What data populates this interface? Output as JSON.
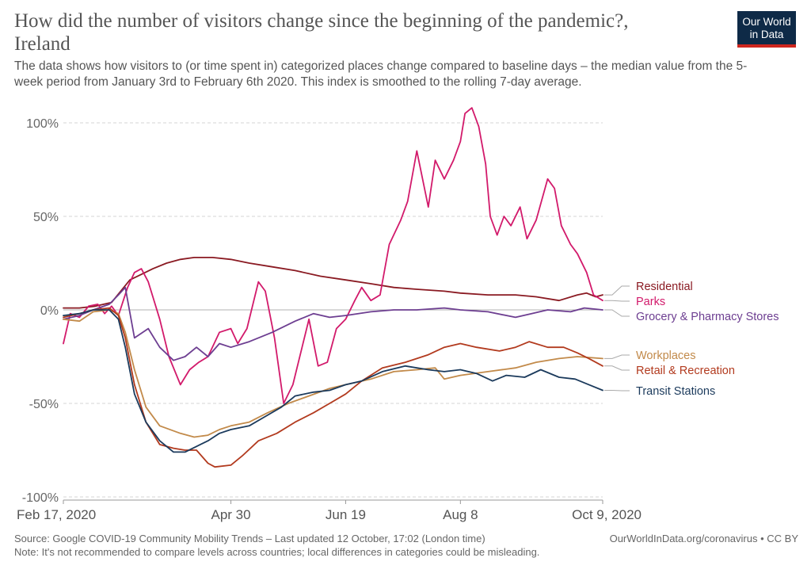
{
  "header": {
    "title": "How did the number of visitors change since the beginning of the pandemic?, Ireland",
    "subtitle": "The data shows how visitors to (or time spent in) categorized places change compared to baseline days – the median value from the 5-week period from January 3rd to February 6th 2020. This index is smoothed to the rolling 7-day average."
  },
  "logo": {
    "line1": "Our World",
    "line2": "in Data",
    "bg_color": "#0e2a47",
    "accent_color": "#ce261e"
  },
  "footer": {
    "source": "Source: Google COVID-19 Community Mobility Trends – Last updated 12 October, 17:02 (London time)",
    "url": "OurWorldInData.org/coronavirus • CC BY",
    "note": "Note: It's not recommended to compare levels across countries; local differences in categories could be misleading."
  },
  "chart_data": {
    "type": "line",
    "title": "How did the number of visitors change since the beginning of the pandemic?, Ireland",
    "x_range": [
      "2020-02-17",
      "2020-10-09"
    ],
    "x_ticks": [
      {
        "date": "2020-02-17",
        "label": "Feb 17, 2020"
      },
      {
        "date": "2020-04-30",
        "label": "Apr 30"
      },
      {
        "date": "2020-06-19",
        "label": "Jun 19"
      },
      {
        "date": "2020-08-08",
        "label": "Aug 8"
      },
      {
        "date": "2020-10-09",
        "label": "Oct 9, 2020"
      }
    ],
    "ylim": [
      -100,
      100
    ],
    "y_ticks": [
      {
        "value": -100,
        "label": "-100%"
      },
      {
        "value": -50,
        "label": "-50%"
      },
      {
        "value": 0,
        "label": "0%"
      },
      {
        "value": 50,
        "label": "50%"
      },
      {
        "value": 100,
        "label": "100%"
      }
    ],
    "grid": true,
    "legend_placement": "right (labels at line ends)",
    "series": [
      {
        "name": "Residential",
        "color": "#8a1a22",
        "points": [
          [
            "2020-02-17",
            1
          ],
          [
            "2020-02-24",
            1
          ],
          [
            "2020-03-02",
            2
          ],
          [
            "2020-03-09",
            4
          ],
          [
            "2020-03-13",
            10
          ],
          [
            "2020-03-17",
            16
          ],
          [
            "2020-03-22",
            19
          ],
          [
            "2020-03-27",
            22
          ],
          [
            "2020-04-02",
            25
          ],
          [
            "2020-04-08",
            27
          ],
          [
            "2020-04-14",
            28
          ],
          [
            "2020-04-22",
            28
          ],
          [
            "2020-04-30",
            27
          ],
          [
            "2020-05-08",
            25
          ],
          [
            "2020-05-18",
            23
          ],
          [
            "2020-05-28",
            21
          ],
          [
            "2020-06-08",
            18
          ],
          [
            "2020-06-19",
            16
          ],
          [
            "2020-06-30",
            14
          ],
          [
            "2020-07-10",
            12
          ],
          [
            "2020-07-20",
            11
          ],
          [
            "2020-08-01",
            10
          ],
          [
            "2020-08-08",
            9
          ],
          [
            "2020-08-20",
            8
          ],
          [
            "2020-09-01",
            8
          ],
          [
            "2020-09-10",
            7
          ],
          [
            "2020-09-20",
            5
          ],
          [
            "2020-09-28",
            8
          ],
          [
            "2020-10-02",
            9
          ],
          [
            "2020-10-06",
            7
          ],
          [
            "2020-10-09",
            8
          ]
        ]
      },
      {
        "name": "Parks",
        "color": "#d21a6b",
        "points": [
          [
            "2020-02-17",
            -18
          ],
          [
            "2020-02-20",
            -2
          ],
          [
            "2020-02-24",
            -4
          ],
          [
            "2020-02-28",
            2
          ],
          [
            "2020-03-03",
            3
          ],
          [
            "2020-03-06",
            -2
          ],
          [
            "2020-03-09",
            2
          ],
          [
            "2020-03-12",
            -3
          ],
          [
            "2020-03-16",
            12
          ],
          [
            "2020-03-19",
            20
          ],
          [
            "2020-03-22",
            22
          ],
          [
            "2020-03-25",
            15
          ],
          [
            "2020-03-30",
            -5
          ],
          [
            "2020-04-03",
            -25
          ],
          [
            "2020-04-08",
            -40
          ],
          [
            "2020-04-12",
            -32
          ],
          [
            "2020-04-16",
            -28
          ],
          [
            "2020-04-20",
            -25
          ],
          [
            "2020-04-25",
            -12
          ],
          [
            "2020-04-30",
            -10
          ],
          [
            "2020-05-03",
            -18
          ],
          [
            "2020-05-07",
            -10
          ],
          [
            "2020-05-12",
            15
          ],
          [
            "2020-05-15",
            10
          ],
          [
            "2020-05-19",
            -15
          ],
          [
            "2020-05-23",
            -50
          ],
          [
            "2020-05-27",
            -40
          ],
          [
            "2020-05-31",
            -20
          ],
          [
            "2020-06-03",
            -5
          ],
          [
            "2020-06-07",
            -30
          ],
          [
            "2020-06-11",
            -28
          ],
          [
            "2020-06-15",
            -10
          ],
          [
            "2020-06-19",
            -5
          ],
          [
            "2020-06-23",
            5
          ],
          [
            "2020-06-26",
            12
          ],
          [
            "2020-06-30",
            5
          ],
          [
            "2020-07-04",
            8
          ],
          [
            "2020-07-08",
            35
          ],
          [
            "2020-07-13",
            48
          ],
          [
            "2020-07-16",
            58
          ],
          [
            "2020-07-20",
            85
          ],
          [
            "2020-07-25",
            55
          ],
          [
            "2020-07-28",
            80
          ],
          [
            "2020-08-01",
            70
          ],
          [
            "2020-08-05",
            80
          ],
          [
            "2020-08-08",
            90
          ],
          [
            "2020-08-10",
            105
          ],
          [
            "2020-08-13",
            108
          ],
          [
            "2020-08-16",
            98
          ],
          [
            "2020-08-19",
            78
          ],
          [
            "2020-08-21",
            50
          ],
          [
            "2020-08-24",
            40
          ],
          [
            "2020-08-27",
            50
          ],
          [
            "2020-08-30",
            45
          ],
          [
            "2020-09-03",
            55
          ],
          [
            "2020-09-06",
            38
          ],
          [
            "2020-09-10",
            48
          ],
          [
            "2020-09-15",
            70
          ],
          [
            "2020-09-18",
            65
          ],
          [
            "2020-09-21",
            45
          ],
          [
            "2020-09-25",
            35
          ],
          [
            "2020-09-28",
            30
          ],
          [
            "2020-10-02",
            20
          ],
          [
            "2020-10-05",
            8
          ],
          [
            "2020-10-09",
            5
          ]
        ]
      },
      {
        "name": "Grocery & Pharmacy Stores",
        "color": "#6d3e91",
        "points": [
          [
            "2020-02-17",
            -5
          ],
          [
            "2020-02-24",
            -3
          ],
          [
            "2020-03-01",
            0
          ],
          [
            "2020-03-08",
            3
          ],
          [
            "2020-03-12",
            8
          ],
          [
            "2020-03-15",
            12
          ],
          [
            "2020-03-19",
            -15
          ],
          [
            "2020-03-25",
            -10
          ],
          [
            "2020-03-30",
            -20
          ],
          [
            "2020-04-05",
            -27
          ],
          [
            "2020-04-10",
            -25
          ],
          [
            "2020-04-15",
            -20
          ],
          [
            "2020-04-20",
            -25
          ],
          [
            "2020-04-25",
            -18
          ],
          [
            "2020-04-30",
            -20
          ],
          [
            "2020-05-08",
            -17
          ],
          [
            "2020-05-18",
            -12
          ],
          [
            "2020-05-28",
            -6
          ],
          [
            "2020-06-05",
            -2
          ],
          [
            "2020-06-12",
            -4
          ],
          [
            "2020-06-19",
            -3
          ],
          [
            "2020-06-30",
            -1
          ],
          [
            "2020-07-10",
            0
          ],
          [
            "2020-07-20",
            0
          ],
          [
            "2020-08-01",
            1
          ],
          [
            "2020-08-08",
            0
          ],
          [
            "2020-08-20",
            -1
          ],
          [
            "2020-09-01",
            -4
          ],
          [
            "2020-09-08",
            -2
          ],
          [
            "2020-09-15",
            0
          ],
          [
            "2020-09-25",
            -1
          ],
          [
            "2020-10-01",
            1
          ],
          [
            "2020-10-09",
            0
          ]
        ]
      },
      {
        "name": "Workplaces",
        "color": "#c28a4a",
        "points": [
          [
            "2020-02-17",
            -5
          ],
          [
            "2020-02-24",
            -6
          ],
          [
            "2020-03-01",
            -1
          ],
          [
            "2020-03-08",
            0
          ],
          [
            "2020-03-12",
            -2
          ],
          [
            "2020-03-15",
            -12
          ],
          [
            "2020-03-19",
            -32
          ],
          [
            "2020-03-24",
            -52
          ],
          [
            "2020-03-30",
            -62
          ],
          [
            "2020-04-08",
            -66
          ],
          [
            "2020-04-14",
            -68
          ],
          [
            "2020-04-20",
            -67
          ],
          [
            "2020-04-25",
            -64
          ],
          [
            "2020-04-30",
            -62
          ],
          [
            "2020-05-08",
            -60
          ],
          [
            "2020-05-16",
            -55
          ],
          [
            "2020-05-25",
            -50
          ],
          [
            "2020-06-03",
            -46
          ],
          [
            "2020-06-12",
            -42
          ],
          [
            "2020-06-19",
            -40
          ],
          [
            "2020-06-30",
            -37
          ],
          [
            "2020-07-10",
            -33
          ],
          [
            "2020-07-20",
            -32
          ],
          [
            "2020-07-28",
            -31
          ],
          [
            "2020-08-01",
            -37
          ],
          [
            "2020-08-08",
            -35
          ],
          [
            "2020-08-20",
            -33
          ],
          [
            "2020-09-01",
            -31
          ],
          [
            "2020-09-10",
            -28
          ],
          [
            "2020-09-20",
            -26
          ],
          [
            "2020-09-28",
            -25
          ],
          [
            "2020-10-09",
            -26
          ]
        ]
      },
      {
        "name": "Retail & Recreation",
        "color": "#b23a1e",
        "points": [
          [
            "2020-02-17",
            -4
          ],
          [
            "2020-02-24",
            -2
          ],
          [
            "2020-03-01",
            0
          ],
          [
            "2020-03-08",
            1
          ],
          [
            "2020-03-12",
            -3
          ],
          [
            "2020-03-15",
            -15
          ],
          [
            "2020-03-19",
            -40
          ],
          [
            "2020-03-24",
            -60
          ],
          [
            "2020-03-30",
            -72
          ],
          [
            "2020-04-05",
            -74
          ],
          [
            "2020-04-10",
            -75
          ],
          [
            "2020-04-15",
            -75
          ],
          [
            "2020-04-20",
            -82
          ],
          [
            "2020-04-23",
            -84
          ],
          [
            "2020-04-30",
            -83
          ],
          [
            "2020-05-05",
            -78
          ],
          [
            "2020-05-12",
            -70
          ],
          [
            "2020-05-20",
            -66
          ],
          [
            "2020-05-28",
            -60
          ],
          [
            "2020-06-05",
            -55
          ],
          [
            "2020-06-12",
            -50
          ],
          [
            "2020-06-19",
            -45
          ],
          [
            "2020-06-26",
            -38
          ],
          [
            "2020-07-05",
            -31
          ],
          [
            "2020-07-15",
            -28
          ],
          [
            "2020-07-25",
            -24
          ],
          [
            "2020-08-01",
            -20
          ],
          [
            "2020-08-08",
            -18
          ],
          [
            "2020-08-15",
            -20
          ],
          [
            "2020-08-25",
            -22
          ],
          [
            "2020-09-01",
            -20
          ],
          [
            "2020-09-07",
            -17
          ],
          [
            "2020-09-15",
            -20
          ],
          [
            "2020-09-22",
            -20
          ],
          [
            "2020-09-28",
            -23
          ],
          [
            "2020-10-03",
            -26
          ],
          [
            "2020-10-09",
            -30
          ]
        ]
      },
      {
        "name": "Transit Stations",
        "color": "#1b3a5c",
        "points": [
          [
            "2020-02-17",
            -3
          ],
          [
            "2020-02-24",
            -2
          ],
          [
            "2020-03-01",
            0
          ],
          [
            "2020-03-08",
            0
          ],
          [
            "2020-03-12",
            -5
          ],
          [
            "2020-03-15",
            -20
          ],
          [
            "2020-03-19",
            -45
          ],
          [
            "2020-03-24",
            -60
          ],
          [
            "2020-03-30",
            -70
          ],
          [
            "2020-04-05",
            -76
          ],
          [
            "2020-04-10",
            -76
          ],
          [
            "2020-04-15",
            -73
          ],
          [
            "2020-04-20",
            -70
          ],
          [
            "2020-04-25",
            -66
          ],
          [
            "2020-04-30",
            -64
          ],
          [
            "2020-05-08",
            -62
          ],
          [
            "2020-05-15",
            -57
          ],
          [
            "2020-05-22",
            -52
          ],
          [
            "2020-05-28",
            -46
          ],
          [
            "2020-06-05",
            -44
          ],
          [
            "2020-06-12",
            -43
          ],
          [
            "2020-06-19",
            -40
          ],
          [
            "2020-06-26",
            -38
          ],
          [
            "2020-07-05",
            -33
          ],
          [
            "2020-07-15",
            -30
          ],
          [
            "2020-07-25",
            -32
          ],
          [
            "2020-08-01",
            -33
          ],
          [
            "2020-08-08",
            -32
          ],
          [
            "2020-08-15",
            -34
          ],
          [
            "2020-08-22",
            -38
          ],
          [
            "2020-08-28",
            -35
          ],
          [
            "2020-09-05",
            -36
          ],
          [
            "2020-09-12",
            -32
          ],
          [
            "2020-09-20",
            -36
          ],
          [
            "2020-09-27",
            -37
          ],
          [
            "2020-10-03",
            -40
          ],
          [
            "2020-10-09",
            -43
          ]
        ]
      }
    ],
    "labels": [
      {
        "series": "Residential",
        "text": "Residential"
      },
      {
        "series": "Parks",
        "text": "Parks"
      },
      {
        "series": "Grocery & Pharmacy Stores",
        "text": "Grocery & Pharmacy Stores"
      },
      {
        "series": "Workplaces",
        "text": "Workplaces"
      },
      {
        "series": "Retail & Recreation",
        "text": "Retail & Recreation"
      },
      {
        "series": "Transit Stations",
        "text": "Transit Stations"
      }
    ]
  }
}
